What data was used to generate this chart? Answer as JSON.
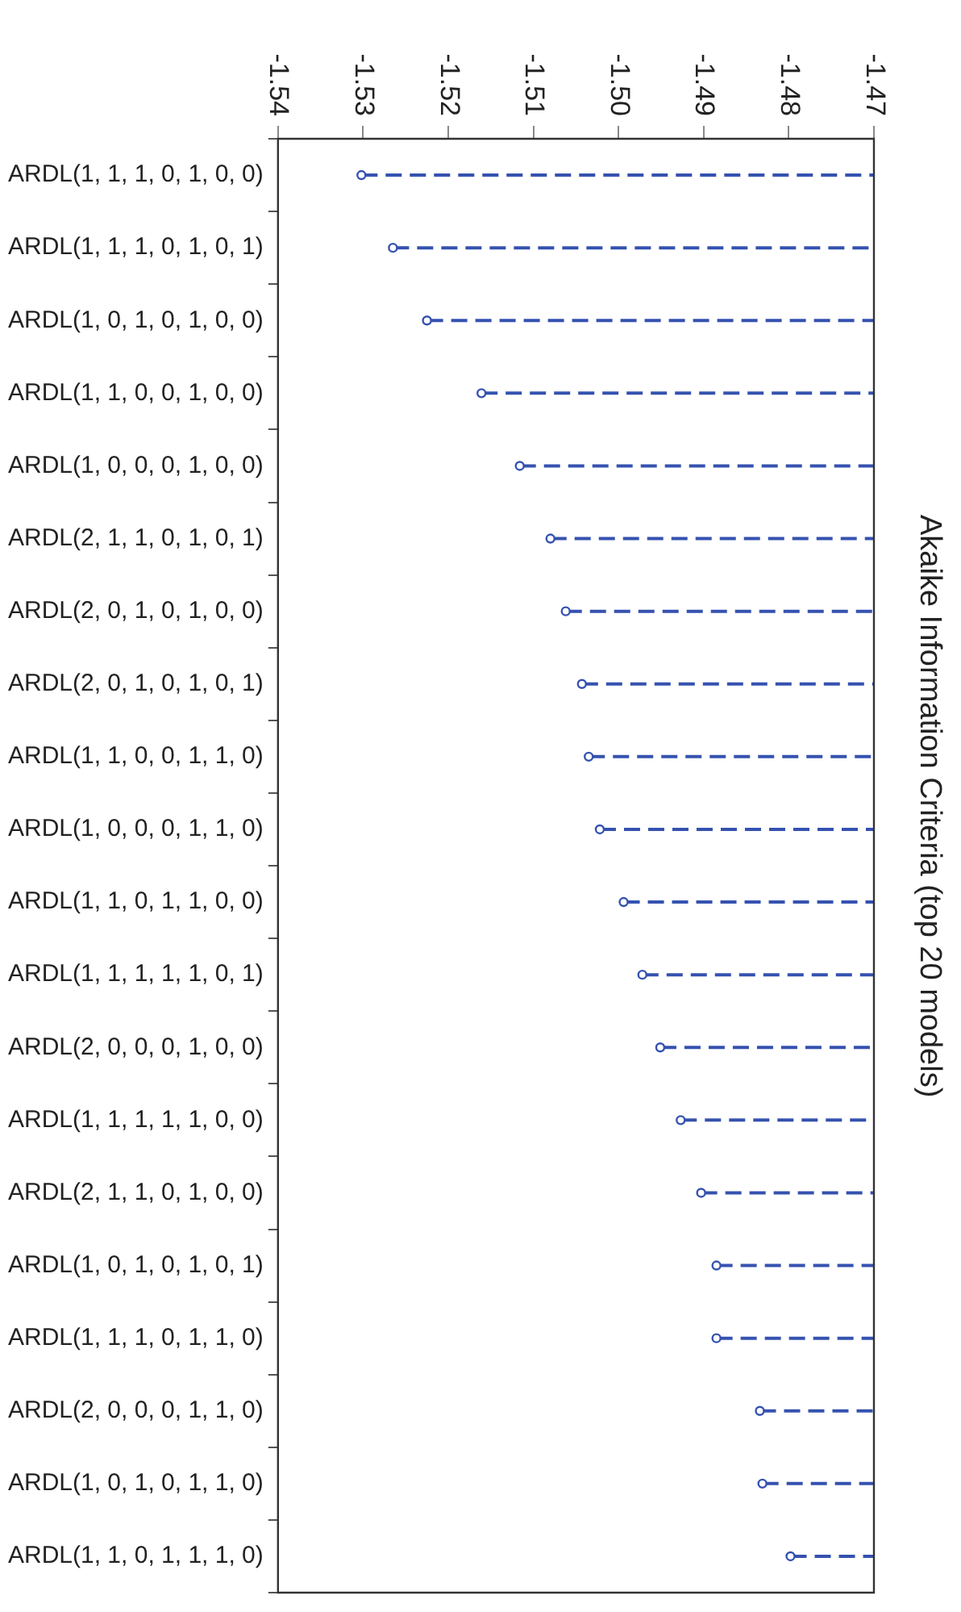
{
  "chart_data": {
    "type": "lollipop",
    "orientation": "horizontal",
    "title": "Akaike Information Criteria (top 20 models)",
    "categories": [
      "ARDL(1, 1, 1, 0, 1, 0, 0)",
      "ARDL(1, 1, 1, 0, 1, 0, 1)",
      "ARDL(1, 0, 1, 0, 1, 0, 0)",
      "ARDL(1, 1, 0, 0, 1, 0, 0)",
      "ARDL(1, 0, 0, 0, 1, 0, 0)",
      "ARDL(2, 1, 1, 0, 1, 0, 1)",
      "ARDL(2, 0, 1, 0, 1, 0, 0)",
      "ARDL(2, 0, 1, 0, 1, 0, 1)",
      "ARDL(1, 1, 0, 0, 1, 1, 0)",
      "ARDL(1, 0, 0, 0, 1, 1, 0)",
      "ARDL(1, 1, 0, 1, 1, 0, 0)",
      "ARDL(1, 1, 1, 1, 1, 0, 1)",
      "ARDL(2, 0, 0, 0, 1, 0, 0)",
      "ARDL(1, 1, 1, 1, 1, 0, 0)",
      "ARDL(2, 1, 1, 0, 1, 0, 0)",
      "ARDL(1, 0, 1, 0, 1, 0, 1)",
      "ARDL(1, 1, 1, 0, 1, 1, 0)",
      "ARDL(2, 0, 0, 0, 1, 1, 0)",
      "ARDL(1, 0, 1, 0, 1, 1, 0)",
      "ARDL(1, 1, 0, 1, 1, 1, 0)"
    ],
    "values": [
      -1.5302,
      -1.5265,
      -1.5225,
      -1.5161,
      -1.5116,
      -1.508,
      -1.5062,
      -1.5043,
      -1.5035,
      -1.5022,
      -1.4994,
      -1.4972,
      -1.4951,
      -1.4927,
      -1.4903,
      -1.4885,
      -1.4885,
      -1.4834,
      -1.4831,
      -1.4798
    ],
    "color": "#3552b0",
    "xlim": [
      -1.54,
      -1.47
    ],
    "xticks": [
      {
        "value": -1.54,
        "label": "-1.54"
      },
      {
        "value": -1.53,
        "label": "-1.53"
      },
      {
        "value": -1.52,
        "label": "-1.52"
      },
      {
        "value": -1.51,
        "label": "-1.51"
      },
      {
        "value": -1.5,
        "label": "-1.50"
      },
      {
        "value": -1.49,
        "label": "-1.49"
      },
      {
        "value": -1.48,
        "label": "-1.48"
      },
      {
        "value": -1.47,
        "label": "-1.47"
      }
    ],
    "marker": "circle",
    "line_style": "dashed",
    "grid": false,
    "legend": false
  }
}
